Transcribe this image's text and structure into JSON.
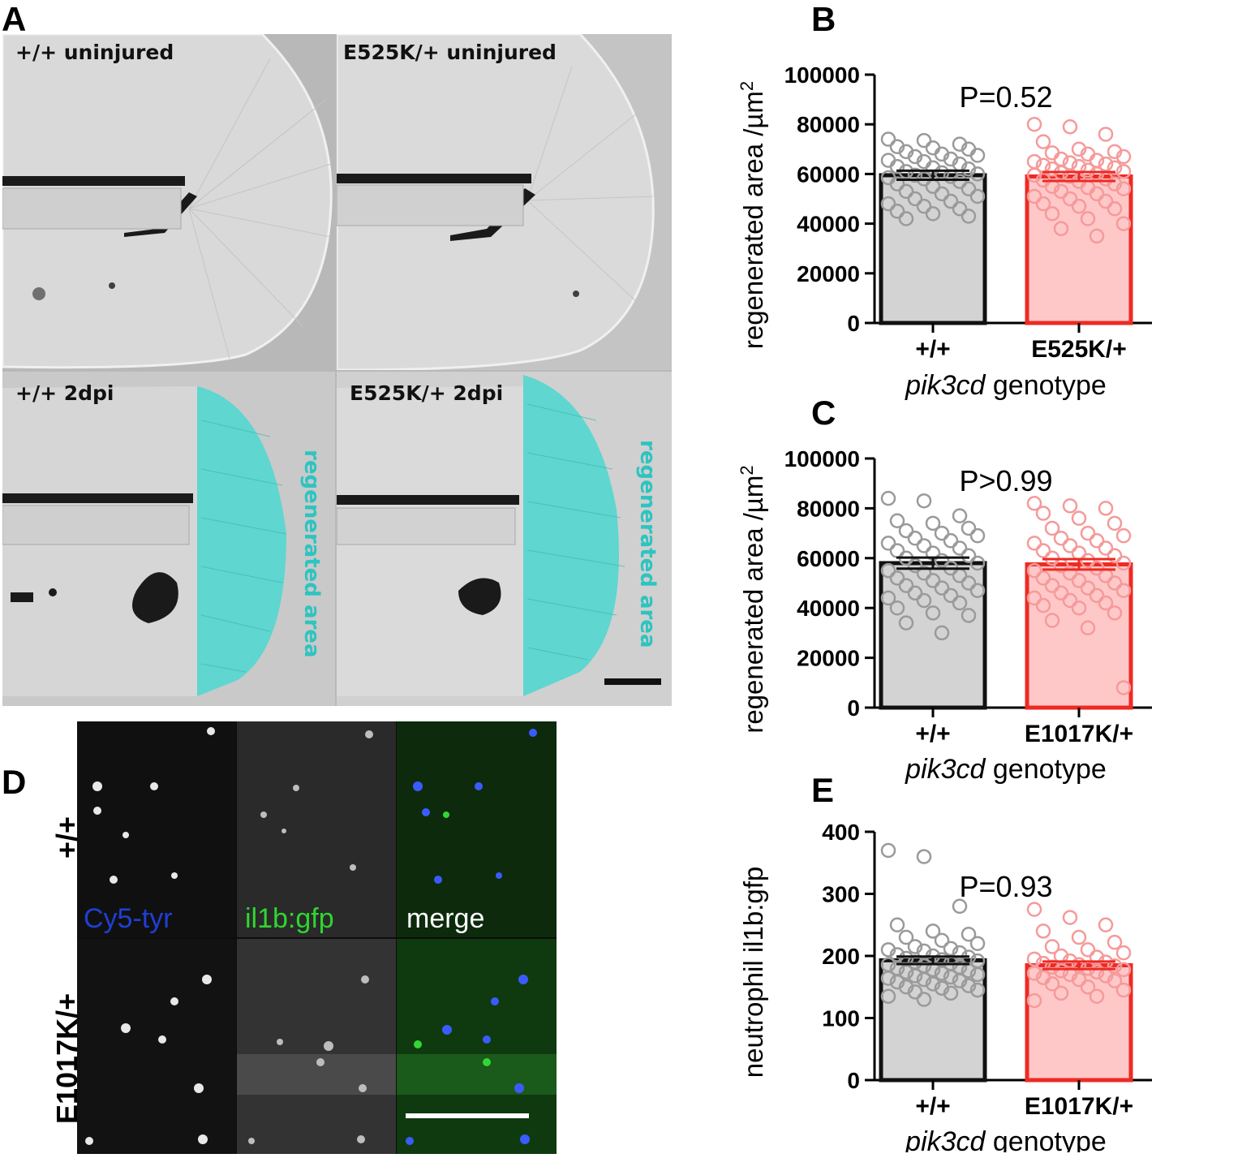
{
  "figure": {
    "panel_letters": {
      "a": "A",
      "b": "B",
      "c": "C",
      "d": "D",
      "e": "E"
    },
    "panel_a": {
      "tiles": [
        {
          "label": "+/+ uninjured"
        },
        {
          "label": "E525K/+ uninjured"
        },
        {
          "label": "+/+ 2dpi",
          "overlay": "regenerated area"
        },
        {
          "label": "E525K/+ 2dpi",
          "overlay": "regenerated area"
        }
      ],
      "overlay_color": "#5fd6d0"
    },
    "panel_d": {
      "channels": [
        {
          "label": "Cy5-tyr",
          "color": "#1f3fd6"
        },
        {
          "label": "il1b:gfp",
          "color": "#2fd62f"
        },
        {
          "label": "merge",
          "color": "#ffffff"
        }
      ],
      "rows": [
        "+/+",
        "E1017K/+"
      ]
    }
  },
  "chart_data": [
    {
      "type": "bar",
      "panel": "B",
      "categories": [
        "+/+",
        "E525K/+"
      ],
      "xlabel_italic": "pik3cd",
      "xlabel_rest": " genotype",
      "ylabel": "regenerated area /µm",
      "ylabel_sup": "2",
      "ylim": [
        0,
        100000
      ],
      "yticks": [
        "0",
        "20000",
        "40000",
        "60000",
        "80000",
        "100000"
      ],
      "ytick_values": [
        0,
        20000,
        40000,
        60000,
        80000,
        100000
      ],
      "annotation": "P=0.52",
      "series": [
        {
          "values": [
            59500,
            59000
          ],
          "sem": [
            1800,
            1800
          ]
        }
      ],
      "points": [
        [
          74000,
          73500,
          72000,
          71000,
          70500,
          70000,
          69000,
          68000,
          67500,
          67000,
          66000,
          65500,
          65000,
          64000,
          63000,
          62500,
          62000,
          61000,
          60500,
          60000,
          59500,
          59000,
          58500,
          58000,
          57000,
          56000,
          55000,
          54000,
          53000,
          52000,
          51000,
          50000,
          49000,
          48000,
          47000,
          46000,
          45000,
          44000,
          43000,
          42000
        ],
        [
          80000,
          79000,
          76000,
          73000,
          70000,
          69000,
          68500,
          68000,
          67000,
          66000,
          65500,
          65000,
          64500,
          64000,
          63500,
          63000,
          62500,
          62000,
          61500,
          61000,
          60500,
          60000,
          59500,
          59000,
          58000,
          57500,
          57000,
          56000,
          55000,
          54500,
          54000,
          53000,
          52000,
          51000,
          50000,
          49000,
          48000,
          47000,
          46000,
          44000,
          42000,
          40000,
          38000,
          35000
        ]
      ],
      "colors": {
        "fill": [
          "#d3d3d3",
          "#ffc8c8"
        ],
        "edge": [
          "#111111",
          "#ee2a24"
        ],
        "point": [
          "#9a9a9a",
          "#f59a9a"
        ]
      }
    },
    {
      "type": "bar",
      "panel": "C",
      "categories": [
        "+/+",
        "E1017K/+"
      ],
      "xlabel_italic": "pik3cd",
      "xlabel_rest": " genotype",
      "ylabel": "regenerated area /µm",
      "ylabel_sup": "2",
      "ylim": [
        0,
        100000
      ],
      "yticks": [
        "0",
        "20000",
        "40000",
        "60000",
        "80000",
        "100000"
      ],
      "ytick_values": [
        0,
        20000,
        40000,
        60000,
        80000,
        100000
      ],
      "annotation": "P>0.99",
      "series": [
        {
          "values": [
            58000,
            57500
          ],
          "sem": [
            2200,
            2100
          ]
        }
      ],
      "points": [
        [
          84000,
          83000,
          77000,
          75000,
          74000,
          72000,
          71000,
          70000,
          69000,
          68000,
          67000,
          66000,
          65000,
          64000,
          63000,
          62000,
          61000,
          60000,
          59000,
          58000,
          57000,
          56000,
          55000,
          54000,
          53000,
          52000,
          51000,
          50000,
          49000,
          48000,
          47000,
          46000,
          45000,
          44000,
          43000,
          42000,
          40000,
          38000,
          37000,
          34000,
          30000
        ],
        [
          82000,
          81000,
          80000,
          78000,
          76000,
          74000,
          72000,
          70000,
          69000,
          68000,
          67000,
          66000,
          65000,
          64000,
          63000,
          62000,
          61000,
          60000,
          59000,
          58000,
          57000,
          56000,
          55000,
          54000,
          53000,
          52000,
          51000,
          50000,
          49000,
          48000,
          47000,
          46000,
          45000,
          44000,
          43000,
          42000,
          41000,
          40000,
          38000,
          35000,
          32000,
          8000
        ]
      ],
      "colors": {
        "fill": [
          "#d3d3d3",
          "#ffc8c8"
        ],
        "edge": [
          "#111111",
          "#ee2a24"
        ],
        "point": [
          "#9a9a9a",
          "#f59a9a"
        ]
      }
    },
    {
      "type": "bar",
      "panel": "E",
      "categories": [
        "+/+",
        "E1017K/+"
      ],
      "xlabel_italic": "pik3cd",
      "xlabel_rest": " genotype",
      "ylabel": "neutrophil il1b:gfp",
      "ylabel_sup": "",
      "ylim": [
        0,
        400
      ],
      "yticks": [
        "0",
        "100",
        "200",
        "300",
        "400"
      ],
      "ytick_values": [
        0,
        100,
        200,
        300,
        400
      ],
      "annotation": "P=0.93",
      "series": [
        {
          "values": [
            193,
            185
          ],
          "sem": [
            6,
            6
          ]
        }
      ],
      "points": [
        [
          370,
          360,
          280,
          250,
          240,
          235,
          230,
          225,
          220,
          215,
          212,
          210,
          208,
          205,
          202,
          200,
          198,
          196,
          194,
          192,
          190,
          188,
          186,
          184,
          182,
          180,
          178,
          176,
          174,
          172,
          170,
          168,
          166,
          164,
          162,
          160,
          158,
          155,
          152,
          150,
          148,
          145,
          142,
          140,
          135,
          130
        ],
        [
          275,
          262,
          250,
          240,
          230,
          222,
          215,
          210,
          205,
          200,
          198,
          195,
          192,
          190,
          188,
          186,
          184,
          182,
          180,
          178,
          176,
          174,
          172,
          170,
          168,
          165,
          162,
          160,
          155,
          150,
          145,
          140,
          135,
          128
        ]
      ],
      "colors": {
        "fill": [
          "#d3d3d3",
          "#ffc8c8"
        ],
        "edge": [
          "#111111",
          "#ee2a24"
        ],
        "point": [
          "#9a9a9a",
          "#f59a9a"
        ]
      }
    }
  ]
}
